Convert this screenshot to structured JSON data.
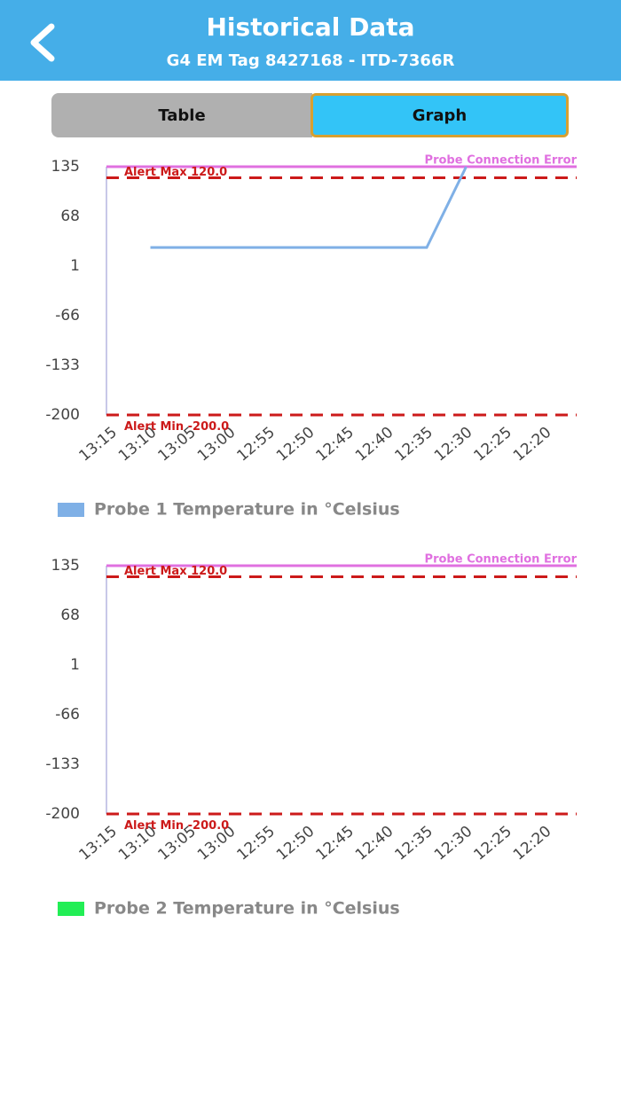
{
  "header": {
    "title": "Historical Data",
    "subtitle": "G4 EM Tag 8427168 - ITD-7366R"
  },
  "tabs": [
    {
      "label": "Table",
      "active": false
    },
    {
      "label": "Graph",
      "active": true
    }
  ],
  "chart_data": [
    {
      "type": "line",
      "categories": [
        "13:15",
        "13:10",
        "13:05",
        "13:00",
        "12:55",
        "12:50",
        "12:45",
        "12:40",
        "12:35",
        "12:30",
        "12:25",
        "12:20"
      ],
      "series": [
        {
          "name": "Probe 1 Temperature in °Celsius",
          "color": "#7fb0e6",
          "values": [
            null,
            26,
            26,
            26,
            26,
            26,
            26,
            26,
            26,
            135,
            null,
            null
          ]
        }
      ],
      "ylim": [
        -200,
        135
      ],
      "yticks": [
        135,
        68,
        1,
        -66,
        -133,
        -200
      ],
      "thresholds": [
        {
          "label": "Probe Connection Error",
          "value": 135,
          "color": "#e070e0",
          "dashed": false
        },
        {
          "label": "Alert Max 120.0",
          "value": 120,
          "color": "#cc1a1a",
          "dashed": true
        },
        {
          "label": "Alert Min -200.0",
          "value": -200,
          "color": "#cc1a1a",
          "dashed": true
        }
      ]
    },
    {
      "type": "line",
      "categories": [
        "13:15",
        "13:10",
        "13:05",
        "13:00",
        "12:55",
        "12:50",
        "12:45",
        "12:40",
        "12:35",
        "12:30",
        "12:25",
        "12:20"
      ],
      "series": [
        {
          "name": "Probe 2 Temperature in °Celsius",
          "color": "#22ee55",
          "values": [
            null,
            null,
            null,
            null,
            null,
            null,
            null,
            null,
            null,
            null,
            null,
            null
          ]
        }
      ],
      "ylim": [
        -200,
        135
      ],
      "yticks": [
        135,
        68,
        1,
        -66,
        -133,
        -200
      ],
      "thresholds": [
        {
          "label": "Probe Connection Error",
          "value": 135,
          "color": "#e070e0",
          "dashed": false
        },
        {
          "label": "Alert Max 120.0",
          "value": 120,
          "color": "#cc1a1a",
          "dashed": true
        },
        {
          "label": "Alert Min -200.0",
          "value": -200,
          "color": "#cc1a1a",
          "dashed": true
        }
      ]
    }
  ]
}
